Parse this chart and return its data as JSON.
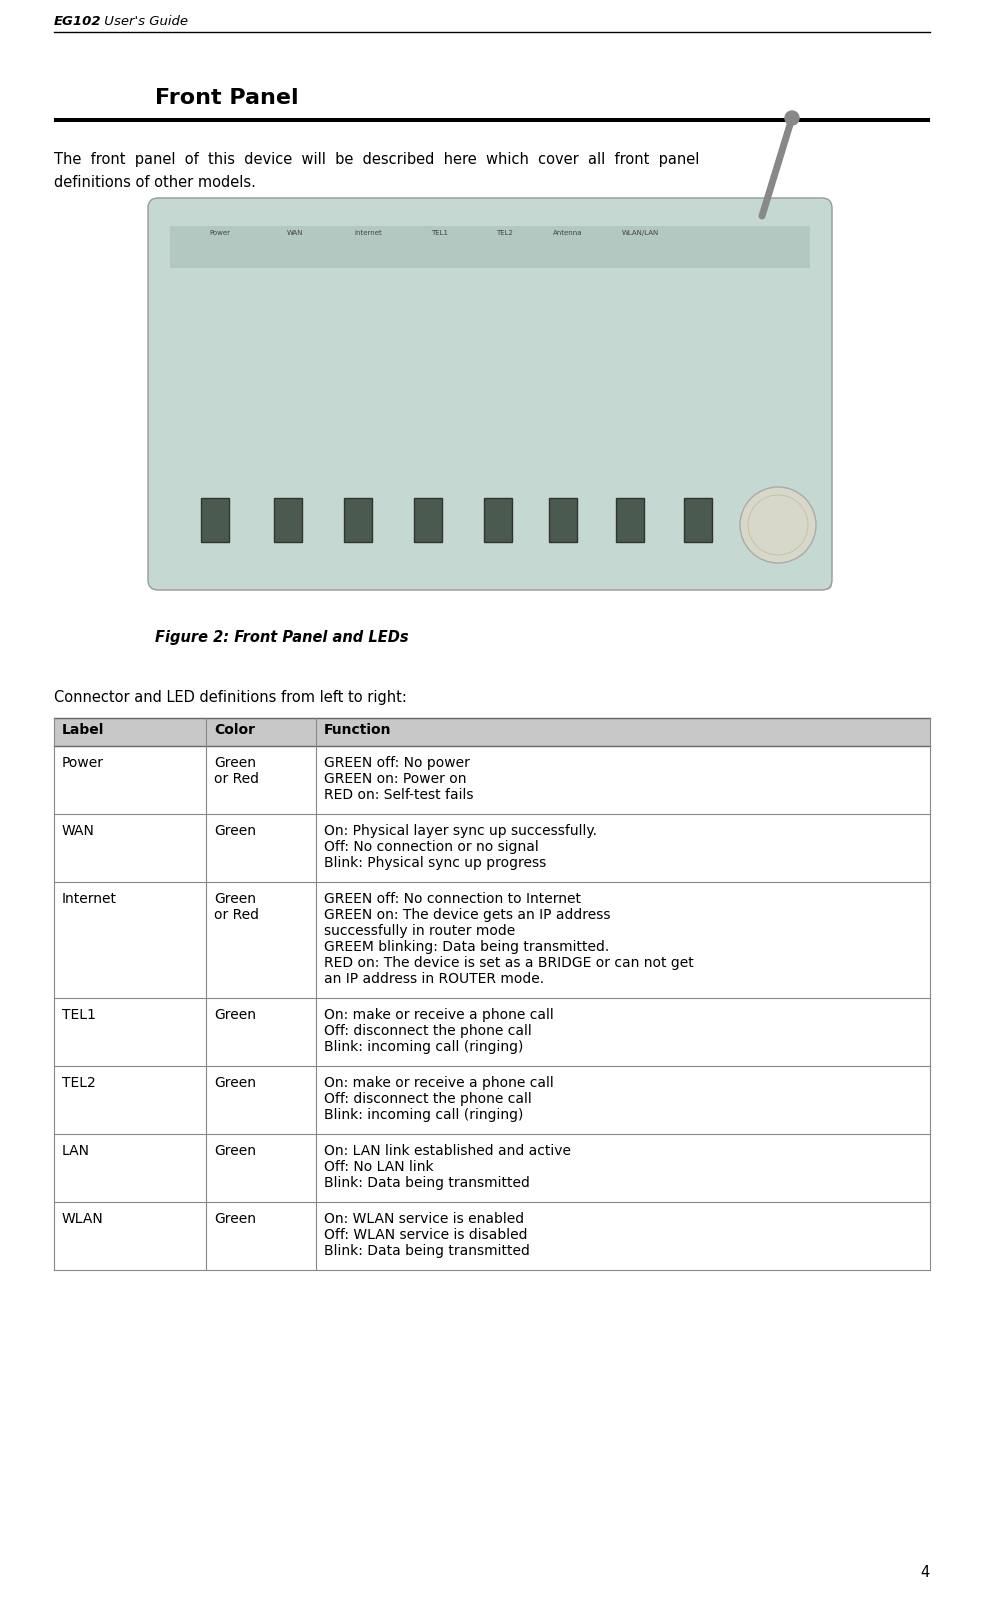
{
  "page_title_bold": "EG102",
  "page_title_normal": " User's Guide",
  "page_number": "4",
  "section_title": "Front Panel",
  "intro_line1": "The  front  panel  of  this  device  will  be  described  here  which  cover  all  front  panel",
  "intro_line2": "definitions of other models.",
  "figure_caption": "Figure 2: Front Panel and LEDs",
  "table_header_text": "Connector and LED definitions from left to right:",
  "table_headers": [
    "Label",
    "Color",
    "Function"
  ],
  "table_rows": [
    {
      "label": "Power",
      "color": "Green\nor Red",
      "function_lines": [
        "GREEN off: No power",
        "GREEN on: Power on",
        "RED on: Self-test fails"
      ]
    },
    {
      "label": "WAN",
      "color": "Green",
      "function_lines": [
        "On: Physical layer sync up successfully.",
        "Off: No connection or no signal",
        "Blink: Physical sync up progress"
      ]
    },
    {
      "label": "Internet",
      "color": "Green\nor Red",
      "function_lines": [
        "GREEN off: No connection to Internet",
        "GREEN on: The device gets an IP address",
        "successfully in router mode",
        "GREEM blinking: Data being transmitted.",
        "RED on: The device is set as a BRIDGE or can not get",
        "an IP address in ROUTER mode."
      ]
    },
    {
      "label": "TEL1",
      "color": "Green",
      "function_lines": [
        "On: make or receive a phone call",
        "Off: disconnect the phone call",
        "Blink: incoming call (ringing)"
      ]
    },
    {
      "label": "TEL2",
      "color": "Green",
      "function_lines": [
        "On: make or receive a phone call",
        "Off: disconnect the phone call",
        "Blink: incoming call (ringing)"
      ]
    },
    {
      "label": "LAN",
      "color": "Green",
      "function_lines": [
        "On: LAN link established and active",
        "Off: No LAN link",
        "Blink: Data being transmitted"
      ]
    },
    {
      "label": "WLAN",
      "color": "Green",
      "function_lines": [
        "On: WLAN service is enabled",
        "Off: WLAN service is disabled",
        "Blink: Data being transmitted"
      ]
    }
  ],
  "header_bg": "#c8c8c8",
  "bg_color": "#ffffff",
  "line_color": "#888888",
  "router_body_color": "#c5d8d2",
  "router_stripe_color": "#b2c8c0",
  "router_shadow_color": "#bbbbbb",
  "router_btn_color": "#4a5a4e",
  "router_btn_edge": "#333333",
  "antenna_color": "#888888",
  "circle_fill": "#d8d8c8",
  "circle_edge": "#aaaaaa"
}
